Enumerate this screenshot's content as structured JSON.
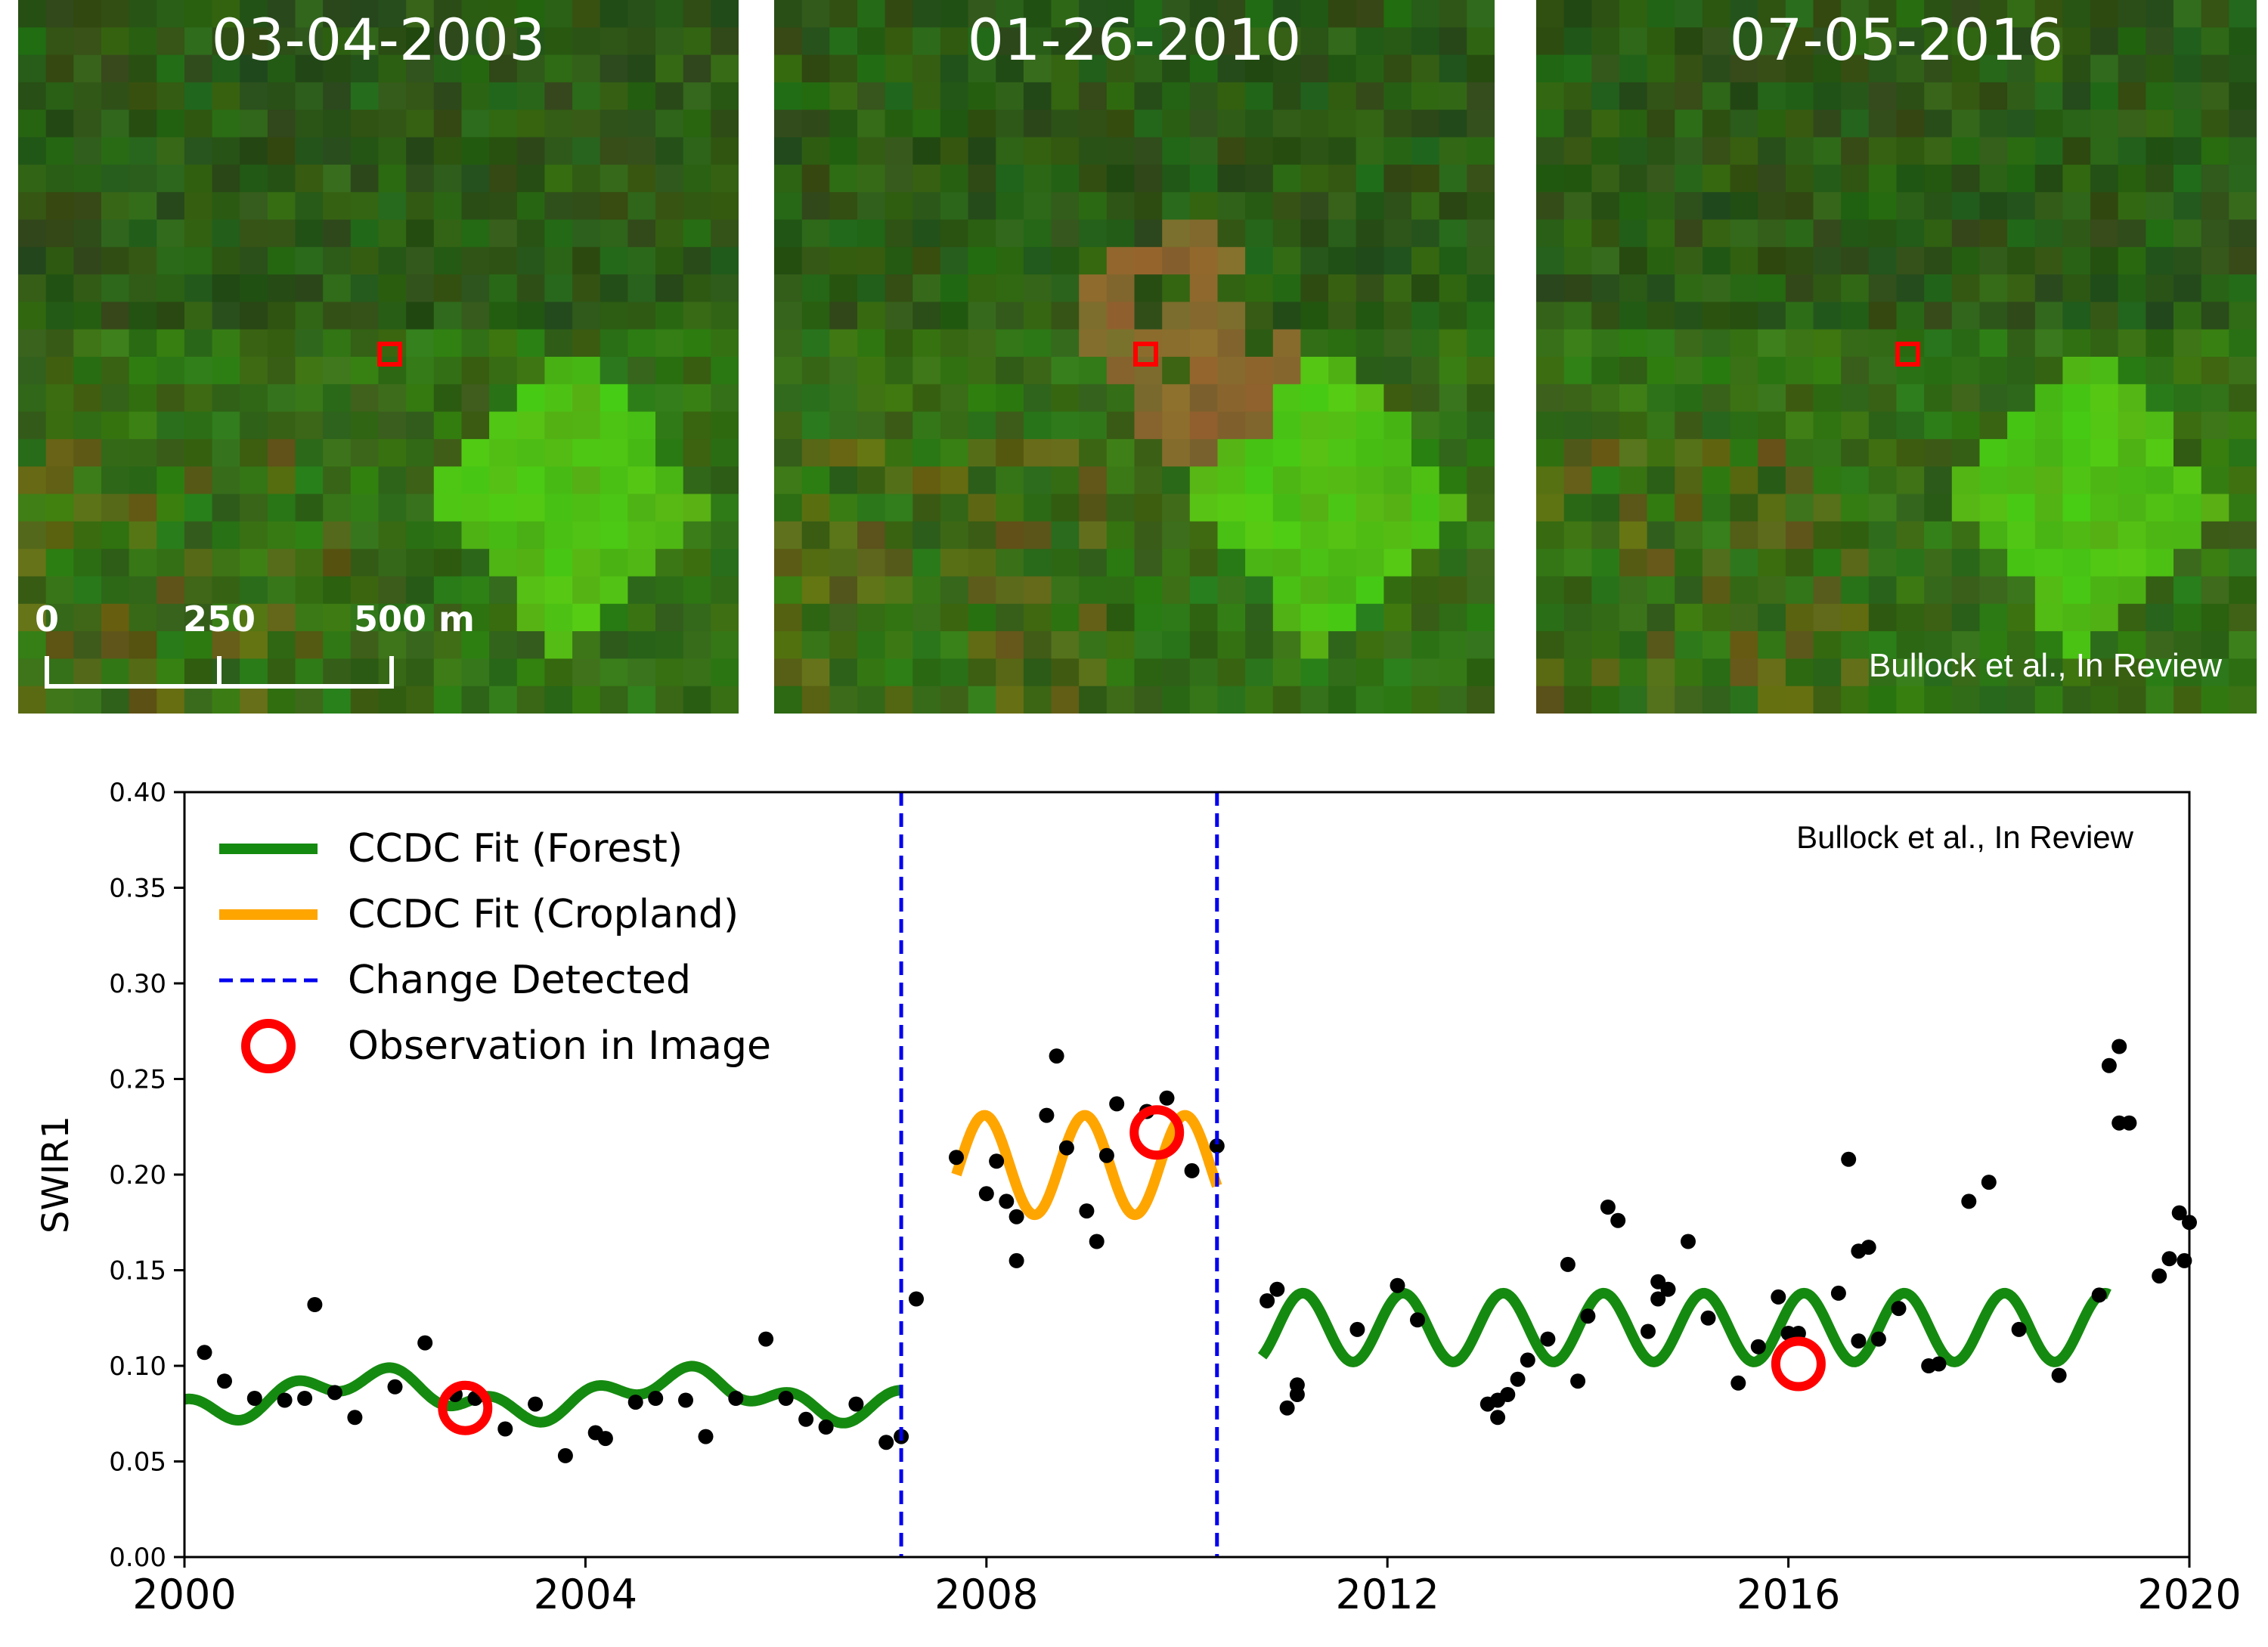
{
  "panels": [
    {
      "date": "03-04-2003"
    },
    {
      "date": "01-26-2010"
    },
    {
      "date": "07-05-2016"
    }
  ],
  "scale_bar": {
    "labels": [
      "0",
      "250",
      "500 m"
    ]
  },
  "credit_image": "Bullock et al., In Review",
  "colors": {
    "forest": "#158a10",
    "cropland": "#ffa500",
    "change": "#0000ee",
    "observation": "#ff0000",
    "points": "#000000",
    "marker": "#ff0000"
  },
  "chart_data": {
    "type": "scatter",
    "ylabel": "SWIR1",
    "xlabel": "",
    "xlim": [
      2000,
      2020
    ],
    "ylim": [
      0.0,
      0.4
    ],
    "xticks": [
      "2000",
      "2004",
      "2008",
      "2012",
      "2016",
      "2020"
    ],
    "yticks": [
      "0.00",
      "0.05",
      "0.10",
      "0.15",
      "0.20",
      "0.25",
      "0.30",
      "0.35",
      "0.40"
    ],
    "annotation": "Bullock et al., In Review",
    "legend": {
      "position": "top-left",
      "items": [
        {
          "label": "CCDC Fit (Forest)",
          "kind": "line",
          "color": "#158a10"
        },
        {
          "label": "CCDC Fit (Cropland)",
          "kind": "line",
          "color": "#ffa500"
        },
        {
          "label": "Change Detected",
          "kind": "dashed",
          "color": "#0000ee"
        },
        {
          "label": "Observation in Image",
          "kind": "circle",
          "color": "#ff0000"
        }
      ]
    },
    "change_detected": [
      2007.15,
      2010.3
    ],
    "fit_segments": [
      {
        "name": "CCDC Fit (Forest)",
        "color": "#158a10",
        "x_start": 2000.0,
        "x_end": 2007.15,
        "base": 0.085,
        "trend": 0.0,
        "harmonics": [
          [
            0.009,
            2.0,
            0.3
          ],
          [
            0.006,
            6.28318,
            1.1
          ]
        ]
      },
      {
        "name": "CCDC Fit (Cropland)",
        "color": "#ffa500",
        "x_start": 2007.7,
        "x_end": 2010.3,
        "base": 0.205,
        "trend": 0.0,
        "harmonics": [
          [
            0.026,
            6.28318,
            1.7
          ]
        ]
      },
      {
        "name": "CCDC Fit (Forest)",
        "color": "#158a10",
        "x_start": 2010.75,
        "x_end": 2019.2,
        "base": 0.12,
        "trend": 0.0,
        "harmonics": [
          [
            0.018,
            6.28318,
            0.6
          ]
        ]
      }
    ],
    "observations": [
      {
        "x": 2002.8,
        "y": 0.078
      },
      {
        "x": 2009.7,
        "y": 0.222
      },
      {
        "x": 2016.1,
        "y": 0.101
      }
    ],
    "points": [
      [
        2000.2,
        0.107
      ],
      [
        2000.4,
        0.092
      ],
      [
        2000.7,
        0.083
      ],
      [
        2001.0,
        0.082
      ],
      [
        2001.2,
        0.083
      ],
      [
        2001.3,
        0.132
      ],
      [
        2001.5,
        0.086
      ],
      [
        2001.7,
        0.073
      ],
      [
        2002.1,
        0.089
      ],
      [
        2002.4,
        0.112
      ],
      [
        2002.7,
        0.085
      ],
      [
        2002.9,
        0.083
      ],
      [
        2003.2,
        0.067
      ],
      [
        2003.5,
        0.08
      ],
      [
        2003.8,
        0.053
      ],
      [
        2004.1,
        0.065
      ],
      [
        2004.2,
        0.062
      ],
      [
        2004.5,
        0.081
      ],
      [
        2004.7,
        0.083
      ],
      [
        2005.0,
        0.082
      ],
      [
        2005.2,
        0.063
      ],
      [
        2005.5,
        0.083
      ],
      [
        2005.8,
        0.114
      ],
      [
        2006.0,
        0.083
      ],
      [
        2006.2,
        0.072
      ],
      [
        2006.4,
        0.068
      ],
      [
        2006.7,
        0.08
      ],
      [
        2007.0,
        0.06
      ],
      [
        2007.15,
        0.063
      ],
      [
        2007.3,
        0.135
      ],
      [
        2007.7,
        0.209
      ],
      [
        2008.0,
        0.19
      ],
      [
        2008.1,
        0.207
      ],
      [
        2008.2,
        0.186
      ],
      [
        2008.3,
        0.178
      ],
      [
        2008.3,
        0.155
      ],
      [
        2008.6,
        0.231
      ],
      [
        2008.7,
        0.262
      ],
      [
        2008.8,
        0.214
      ],
      [
        2009.0,
        0.181
      ],
      [
        2009.1,
        0.165
      ],
      [
        2009.2,
        0.21
      ],
      [
        2009.3,
        0.237
      ],
      [
        2009.6,
        0.233
      ],
      [
        2009.8,
        0.24
      ],
      [
        2010.05,
        0.202
      ],
      [
        2010.3,
        0.215
      ],
      [
        2010.8,
        0.134
      ],
      [
        2010.9,
        0.14
      ],
      [
        2011.0,
        0.078
      ],
      [
        2011.1,
        0.085
      ],
      [
        2011.1,
        0.09
      ],
      [
        2011.7,
        0.119
      ],
      [
        2012.1,
        0.142
      ],
      [
        2012.3,
        0.124
      ],
      [
        2013.0,
        0.08
      ],
      [
        2013.1,
        0.082
      ],
      [
        2013.1,
        0.073
      ],
      [
        2013.2,
        0.085
      ],
      [
        2013.3,
        0.093
      ],
      [
        2013.4,
        0.103
      ],
      [
        2013.6,
        0.114
      ],
      [
        2013.8,
        0.153
      ],
      [
        2013.9,
        0.092
      ],
      [
        2014.0,
        0.126
      ],
      [
        2014.2,
        0.183
      ],
      [
        2014.3,
        0.176
      ],
      [
        2014.6,
        0.118
      ],
      [
        2014.7,
        0.135
      ],
      [
        2014.7,
        0.144
      ],
      [
        2014.8,
        0.14
      ],
      [
        2015.0,
        0.165
      ],
      [
        2015.2,
        0.125
      ],
      [
        2015.5,
        0.091
      ],
      [
        2015.7,
        0.11
      ],
      [
        2015.9,
        0.136
      ],
      [
        2016.0,
        0.117
      ],
      [
        2016.1,
        0.117
      ],
      [
        2016.5,
        0.138
      ],
      [
        2016.6,
        0.208
      ],
      [
        2016.7,
        0.113
      ],
      [
        2016.7,
        0.16
      ],
      [
        2016.8,
        0.162
      ],
      [
        2016.9,
        0.114
      ],
      [
        2017.1,
        0.13
      ],
      [
        2017.4,
        0.1
      ],
      [
        2017.5,
        0.101
      ],
      [
        2017.8,
        0.186
      ],
      [
        2018.0,
        0.196
      ],
      [
        2018.3,
        0.119
      ],
      [
        2018.7,
        0.095
      ],
      [
        2019.1,
        0.137
      ],
      [
        2019.2,
        0.257
      ],
      [
        2019.3,
        0.267
      ],
      [
        2019.3,
        0.227
      ],
      [
        2019.4,
        0.227
      ],
      [
        2019.7,
        0.147
      ],
      [
        2019.8,
        0.156
      ],
      [
        2019.9,
        0.18
      ],
      [
        2019.95,
        0.155
      ],
      [
        2020.0,
        0.175
      ]
    ]
  }
}
